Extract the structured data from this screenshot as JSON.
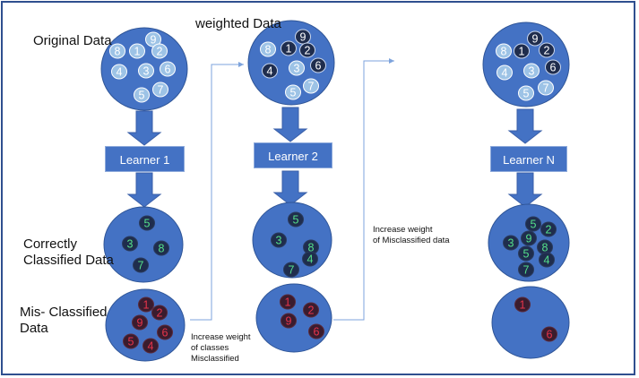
{
  "labels": {
    "original_data": "Original Data",
    "weighted_data": "weighted Data",
    "correctly_line1": "Correctly",
    "correctly_line2": "Classified Data",
    "mis_line1": "Mis- Classified",
    "mis_line2": "Data",
    "note1_line1": "Increase weight",
    "note1_line2": "of classes",
    "note1_line3": "Misclassified",
    "note2_line1": "Increase weight",
    "note2_line2": "of Misclassified data"
  },
  "learners": [
    "Learner 1",
    "Learner 2",
    "Learner N"
  ],
  "colors": {
    "circle_fill": "#4472c4",
    "arrow_fill": "#4472c4",
    "token_light": "#9dc3e6",
    "token_dark": "#1f2d4d",
    "token_correct_text": "#55e08a",
    "token_wrong_fill": "#3a1c2e",
    "token_wrong_text": "#e8344a",
    "frame": "#2f4f8f",
    "connector": "#7da3dc"
  },
  "data_circles": {
    "original": [
      "9",
      "8",
      "1",
      "2",
      "4",
      "3",
      "6",
      "5",
      "7"
    ],
    "weighted_1": [
      "9",
      "8",
      "1",
      "2",
      "4",
      "3",
      "6",
      "5",
      "7"
    ],
    "weighted_n": [
      "9",
      "8",
      "1",
      "2",
      "4",
      "3",
      "6",
      "5",
      "7"
    ]
  },
  "correct_sets": {
    "learner_1": [
      "5",
      "3",
      "8",
      "7"
    ],
    "learner_2": [
      "5",
      "3",
      "8",
      "4",
      "7"
    ],
    "learner_n": [
      "5",
      "2",
      "3",
      "9",
      "8",
      "5",
      "4",
      "7"
    ]
  },
  "misclassified_sets": {
    "learner_1": [
      "1",
      "9",
      "2",
      "5",
      "6",
      "4"
    ],
    "learner_2": [
      "1",
      "2",
      "9",
      "6"
    ],
    "learner_n": [
      "1",
      "6"
    ]
  }
}
